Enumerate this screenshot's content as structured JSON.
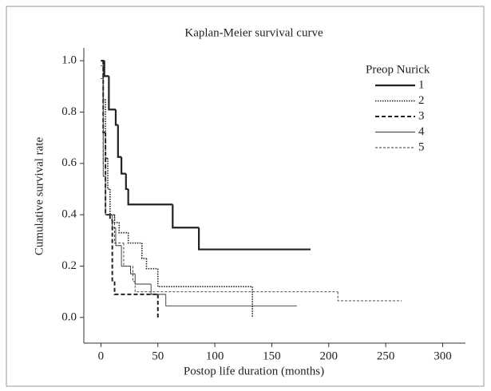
{
  "chart_data": {
    "type": "step",
    "title": "Kaplan-Meier survival curve",
    "x_label": "Postop life duration (months)",
    "y_label": "Cumulative survival rate",
    "legend_title": "Preop Nurick",
    "legend_position": "upper right",
    "xlim": [
      -15,
      320
    ],
    "ylim": [
      -0.1,
      1.05
    ],
    "xticks": [
      0,
      50,
      100,
      150,
      200,
      250,
      300
    ],
    "yticks": [
      {
        "value": 0,
        "label": "0.0"
      },
      0.2,
      0.4,
      0.6,
      0.8,
      {
        "value": 1,
        "label": "1.0"
      }
    ],
    "series": [
      {
        "name": "1",
        "color": "#222222",
        "dash": "none",
        "width": 2.2,
        "x": [
          0,
          3,
          7,
          13,
          15,
          18,
          22,
          24,
          63,
          86,
          184
        ],
        "values": [
          1.0,
          0.94,
          0.81,
          0.75,
          0.625,
          0.56,
          0.5,
          0.44,
          0.35,
          0.265,
          0.265
        ]
      },
      {
        "name": "2",
        "color": "#222222",
        "dash": "1.5 1.5",
        "width": 1.6,
        "x": [
          0,
          2,
          4,
          6,
          8,
          12,
          16,
          24,
          36,
          40,
          50,
          133
        ],
        "values": [
          1.0,
          0.85,
          0.62,
          0.5,
          0.4,
          0.37,
          0.33,
          0.29,
          0.23,
          0.19,
          0.12,
          0.0
        ]
      },
      {
        "name": "3",
        "color": "#222222",
        "dash": "5 3",
        "width": 2,
        "x": [
          0,
          2,
          4,
          8,
          10,
          12,
          50
        ],
        "values": [
          1.0,
          0.72,
          0.4,
          0.38,
          0.14,
          0.09,
          0.0
        ]
      },
      {
        "name": "4",
        "color": "#333333",
        "dash": "none",
        "width": 0.9,
        "x": [
          0,
          2,
          4,
          10,
          13,
          18,
          26,
          30,
          44,
          57,
          172
        ],
        "values": [
          0.93,
          0.55,
          0.4,
          0.35,
          0.28,
          0.2,
          0.17,
          0.13,
          0.09,
          0.045,
          0.045
        ]
      },
      {
        "name": "5",
        "color": "#333333",
        "dash": "3 2",
        "width": 0.9,
        "x": [
          0,
          2,
          4,
          12,
          20,
          28,
          30,
          208,
          264
        ],
        "values": [
          0.98,
          0.6,
          0.4,
          0.29,
          0.2,
          0.14,
          0.1,
          0.065,
          0.065
        ]
      }
    ]
  }
}
